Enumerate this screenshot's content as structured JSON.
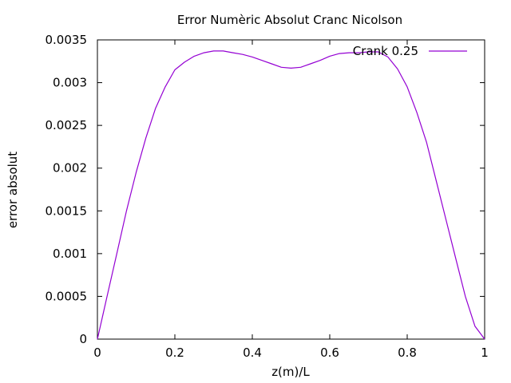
{
  "chart_data": {
    "type": "line",
    "title": "Error Numèric Absolut Cranc Nicolson",
    "xlabel": "z(m)/L",
    "ylabel": "error absolut",
    "xlim": [
      0,
      1
    ],
    "ylim": [
      0,
      0.0035
    ],
    "xticks": [
      0,
      0.2,
      0.4,
      0.6,
      0.8,
      1
    ],
    "xtick_labels": [
      "0",
      "0.2",
      "0.4",
      "0.6",
      "0.8",
      "1"
    ],
    "yticks": [
      0,
      0.0005,
      0.001,
      0.0015,
      0.002,
      0.0025,
      0.003,
      0.0035
    ],
    "ytick_labels": [
      "0",
      "0.0005",
      "0.001",
      "0.0015",
      "0.002",
      "0.0025",
      "0.003",
      "0.0035"
    ],
    "grid": false,
    "legend_position": "top-right",
    "series": [
      {
        "name": "Crank 0.25",
        "color": "#9400d3",
        "x": [
          0,
          0.025,
          0.05,
          0.075,
          0.1,
          0.125,
          0.15,
          0.175,
          0.2,
          0.225,
          0.25,
          0.275,
          0.3,
          0.325,
          0.35,
          0.375,
          0.4,
          0.425,
          0.45,
          0.475,
          0.5,
          0.525,
          0.55,
          0.575,
          0.6,
          0.625,
          0.65,
          0.675,
          0.7,
          0.725,
          0.75,
          0.775,
          0.8,
          0.825,
          0.85,
          0.875,
          0.9,
          0.925,
          0.95,
          0.975,
          1
        ],
        "y": [
          0,
          0.0005,
          0.001,
          0.0015,
          0.00195,
          0.00235,
          0.0027,
          0.00295,
          0.00315,
          0.00324,
          0.00331,
          0.00335,
          0.00337,
          0.00337,
          0.00335,
          0.00333,
          0.0033,
          0.00326,
          0.00322,
          0.00318,
          0.00317,
          0.00318,
          0.00322,
          0.00326,
          0.00331,
          0.00334,
          0.00335,
          0.00335,
          0.00336,
          0.00336,
          0.0033,
          0.00316,
          0.00295,
          0.00265,
          0.0023,
          0.00185,
          0.0014,
          0.00095,
          0.0005,
          0.00015,
          0
        ]
      }
    ]
  }
}
